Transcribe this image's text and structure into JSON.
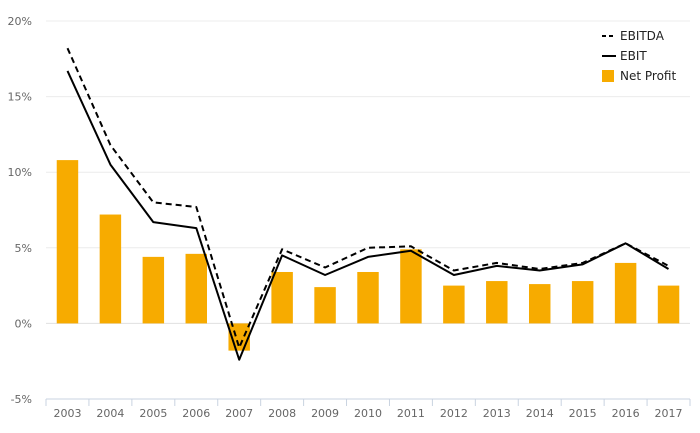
{
  "chart_data": {
    "type": "bar+line",
    "categories": [
      "2003",
      "2004",
      "2005",
      "2006",
      "2007",
      "2008",
      "2009",
      "2010",
      "2011",
      "2012",
      "2013",
      "2014",
      "2015",
      "2016",
      "2017"
    ],
    "series": [
      {
        "name": "EBITDA",
        "type": "line",
        "style": "dashed",
        "color": "#000000",
        "values": [
          18.2,
          11.8,
          8.0,
          7.7,
          -1.6,
          4.9,
          3.7,
          5.0,
          5.1,
          3.5,
          4.0,
          3.6,
          4.0,
          5.3,
          3.8
        ]
      },
      {
        "name": "EBIT",
        "type": "line",
        "style": "solid",
        "color": "#000000",
        "values": [
          16.7,
          10.5,
          6.7,
          6.3,
          -2.4,
          4.5,
          3.2,
          4.4,
          4.8,
          3.2,
          3.8,
          3.5,
          3.9,
          5.3,
          3.6
        ]
      },
      {
        "name": "Net Profit",
        "type": "bar",
        "color": "#f7ab00",
        "values": [
          10.8,
          7.2,
          4.4,
          4.6,
          -1.8,
          3.4,
          2.4,
          3.4,
          4.9,
          2.5,
          2.8,
          2.6,
          2.8,
          4.0,
          2.5
        ]
      }
    ],
    "y_ticks": [
      "20%",
      "15%",
      "10%",
      "5%",
      "0%",
      "-5%"
    ],
    "ylim": [
      -5,
      20
    ],
    "grid": true,
    "legend_position": "top-right"
  }
}
